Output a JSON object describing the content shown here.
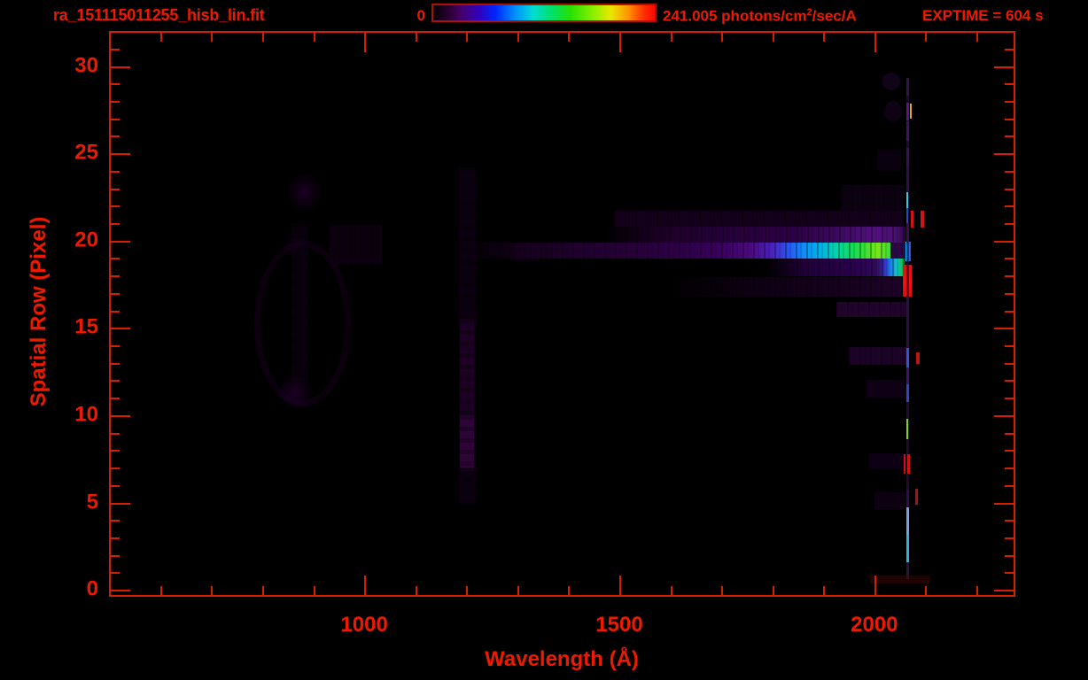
{
  "header": {
    "title": "ra_151115011255_hisb_lin.fit",
    "colorbar_min": "0",
    "colorbar_max_value": "241.005 photons/cm",
    "unit_sup": "2",
    "unit_suffix": "/sec/A",
    "exptime": "EXPTIME = 604 s",
    "colorbar_gradient": "linear-gradient(90deg,#050005 0%,#2a0030 7%,#46006e 13%,#3400b8 20%,#0024ff 28%,#0090ff 37%,#00dcd4 45%,#00e064 54%,#28e000 62%,#86f000 72%,#eae800 80%,#ff9400 88%,#ff3000 95%,#ff0600 100%)",
    "accent_color": "#ee1a00",
    "frame_color": "#d42000"
  },
  "chart_data": {
    "type": "heatmap",
    "title": "ra_151115011255_hisb_lin.fit",
    "xlabel": "Wavelength (Å)",
    "ylabel": "Spatial Row (Pixel)",
    "xlim": [
      503,
      2273
    ],
    "ylim": [
      -0.3,
      31.9
    ],
    "x_axis": {
      "major": [
        1000,
        1500,
        2000
      ],
      "minor_start": 600,
      "minor_end": 2200,
      "minor_step": 100
    },
    "y_axis": {
      "major": [
        0,
        5,
        10,
        15,
        20,
        25,
        30
      ],
      "minor_start": 0,
      "minor_end": 31,
      "minor_step": 1
    },
    "intensity_scale": {
      "min": 0,
      "max": 241.005,
      "units": "photons/cm2/sec/A",
      "stretch": "linear"
    },
    "exposure_time_s": 604,
    "legend_position": "top",
    "grid": false,
    "features": [
      {
        "name": "faint-ring-left",
        "x": [
          784,
          974
        ],
        "rows": [
          10.5,
          20.0
        ],
        "bg": "transparent",
        "border": "7px solid rgba(22,0,28,0.55)"
      },
      {
        "name": "faint-blob-left-upper",
        "x": [
          848,
          917
        ],
        "rows": [
          21.6,
          23.9
        ],
        "blob": true,
        "bg": "radial-gradient(ellipse, rgba(46,0,58,0.6), rgba(0,0,0,0) 72%)"
      },
      {
        "name": "faint-blob-left-lower",
        "x": [
          830,
          900
        ],
        "rows": [
          10.3,
          12.4
        ],
        "blob": true,
        "bg": "radial-gradient(ellipse, rgba(50,0,64,0.58), rgba(0,0,0,0) 72%)"
      },
      {
        "name": "faint-blob-left-mid",
        "x": [
          838,
          890
        ],
        "rows": [
          18.9,
          20.6
        ],
        "blob": true,
        "bg": "radial-gradient(ellipse, rgba(30,0,40,0.4), rgba(0,0,0,0) 72%)"
      },
      {
        "name": "faint-column-860",
        "x": [
          858,
          890
        ],
        "rows": [
          12.0,
          21.0
        ],
        "bg": "rgba(24,0,32,0.35)",
        "vstripes": true
      },
      {
        "name": "lyman-column-base",
        "x": [
          1186,
          1218
        ],
        "rows": [
          4.9,
          24.2
        ],
        "bg": "rgba(28,0,38,0.4)",
        "vstripes": true
      },
      {
        "name": "lyman-column-mid",
        "x": [
          1188,
          1216
        ],
        "rows": [
          6.8,
          15.5
        ],
        "bg": "rgba(46,2,56,0.55)",
        "vstripes": true
      },
      {
        "name": "lyman-column-bright",
        "x": [
          1188,
          1216
        ],
        "rows": [
          7.0,
          10.0
        ],
        "bg": "rgba(62,6,74,0.6)",
        "vstripes": true
      },
      {
        "name": "trace-smudge-950",
        "x": [
          931,
          1035
        ],
        "rows": [
          18.6,
          20.9
        ],
        "bg": "rgba(22,0,30,0.45)",
        "stripes": true
      },
      {
        "name": "trace-smudge-1300",
        "x": [
          1294,
          1346
        ],
        "rows": [
          18.8,
          19.9
        ],
        "bg": "rgba(26,0,34,0.5)",
        "stripes": true
      },
      {
        "name": "band-row21-faint",
        "x": [
          1490,
          2058
        ],
        "rows": [
          20.8,
          21.7
        ],
        "bg": "rgba(26,0,36,0.75)",
        "stripes": true
      },
      {
        "name": "band-row22-faint",
        "x": [
          1935,
          2058
        ],
        "rows": [
          21.7,
          23.2
        ],
        "bg": "rgba(24,2,34,0.5)",
        "stripes": true
      },
      {
        "name": "band-row24-faint",
        "x": [
          2005,
          2055
        ],
        "rows": [
          24.0,
          25.2
        ],
        "bg": "rgba(22,2,32,0.45)"
      },
      {
        "name": "band-row20",
        "x": [
          1472,
          2061
        ],
        "rows": [
          19.9,
          20.8
        ],
        "bg": "linear-gradient(90deg, rgba(30,0,40,0) 0%, rgba(34,0,46,0.8) 18%, #26003a 40%, #2c0044 62%, #3c0a5e 78%, #521080 90%, #48106e 97%, #2c0a46 100%)",
        "stripes": true
      },
      {
        "name": "main-trace",
        "x": [
          1178,
          2031
        ],
        "rows": [
          18.95,
          19.9
        ],
        "bg": "linear-gradient(90deg, rgba(20,0,26,0) 0%, rgba(26,0,34,0.55) 12%, #1e002c 26%, #260038 40%, #2e0048 52%, #3a005e 61%, #4c0a80 68%, #4a22c2 73%, #2a54f2 76.5%, #0e8cfa 80%, #00b4e8 84%, #00d8a0 88%, #10dc5c 91%, #34e034 94%, #7ae816 97%, #3cd83c 100%)",
        "stripes": true
      },
      {
        "name": "trace-end-purple-block",
        "x": [
          2031,
          2061
        ],
        "rows": [
          18.95,
          19.9
        ],
        "bg": "#2c0846",
        "stripes": true
      },
      {
        "name": "trace-end-blue-edge",
        "x": [
          2061,
          2071
        ],
        "rows": [
          18.8,
          19.95
        ],
        "bg": "linear-gradient(90deg,#00b6ff 0%,#1e9cf4 50%,#2440e0 100%)"
      },
      {
        "name": "band-row18",
        "x": [
          1784,
          2059
        ],
        "rows": [
          17.95,
          18.95
        ],
        "bg": "linear-gradient(90deg, rgba(26,0,36,0) 0%, #22003a 30%, #28004a 60%, #30085a 78%, #341468 82%, #3134cc 86%, #1a86e8 90.5%, #0cc4d4 94%, #16c464 97.5%, #0e9040 100%)",
        "stripes": true
      },
      {
        "name": "band-row17-faint",
        "x": [
          1595,
          2055
        ],
        "rows": [
          16.8,
          17.92
        ],
        "bg": "linear-gradient(90deg, rgba(18,0,24,0) 0%, rgba(22,0,30,0.6) 35%, rgba(28,2,38,0.8) 75%, rgba(34,4,46,0.85) 100%)",
        "stripes": true
      },
      {
        "name": "saturated-red-block",
        "x": [
          2056,
          2074
        ],
        "rows": [
          16.8,
          18.6
        ],
        "bg": "linear-gradient(180deg,#d81410 0%,#f41408 55%,#e00c06 100%)"
      },
      {
        "name": "band-row16-faint",
        "x": [
          1925,
          2062
        ],
        "rows": [
          15.6,
          16.5
        ],
        "bg": "rgba(42,4,58,0.8)",
        "stripes": true
      },
      {
        "name": "band-row13-faint",
        "x": [
          1950,
          2062
        ],
        "rows": [
          12.9,
          13.9
        ],
        "bg": "rgba(38,4,52,0.75)",
        "stripes": true
      },
      {
        "name": "band-row11-faint",
        "x": [
          1985,
          2062
        ],
        "rows": [
          11.0,
          12.0
        ],
        "bg": "rgba(26,0,36,0.6)"
      },
      {
        "name": "band-row7-faint",
        "x": [
          1990,
          2062
        ],
        "rows": [
          6.9,
          7.8
        ],
        "bg": "rgba(26,0,36,0.55)"
      },
      {
        "name": "band-row5-faint",
        "x": [
          2000,
          2062
        ],
        "rows": [
          4.6,
          5.6
        ],
        "bg": "rgba(24,0,34,0.5)"
      },
      {
        "name": "edge-top-blob-a",
        "x": [
          2015,
          2050
        ],
        "rows": [
          28.6,
          29.6
        ],
        "blob": true,
        "bg": "rgba(34,6,48,0.5)"
      },
      {
        "name": "edge-top-blob-b",
        "x": [
          2020,
          2055
        ],
        "rows": [
          26.8,
          28.0
        ],
        "blob": true,
        "bg": "rgba(30,4,44,0.45)"
      },
      {
        "name": "edge-line-stem",
        "x": [
          2063,
          2068
        ],
        "rows": [
          0.6,
          29.3
        ],
        "bg": "rgba(42,12,64,0.75)"
      },
      {
        "name": "edge-seg-row29",
        "x": [
          2063,
          2068
        ],
        "rows": [
          28.3,
          29.3
        ],
        "bg": "#381050"
      },
      {
        "name": "edge-seg-row27",
        "x": [
          2063,
          2068
        ],
        "rows": [
          26.9,
          27.9
        ],
        "bg": "#5c1488"
      },
      {
        "name": "edge-orange-dash-row27",
        "x": [
          2070,
          2074
        ],
        "rows": [
          27.0,
          27.85
        ],
        "bg": "#e8a81c"
      },
      {
        "name": "edge-seg-row26",
        "x": [
          2063,
          2068
        ],
        "rows": [
          25.7,
          26.85
        ],
        "bg": "#44106a"
      },
      {
        "name": "edge-seg-row25",
        "x": [
          2063,
          2068
        ],
        "rows": [
          24.3,
          25.3
        ],
        "bg": "#3c0c5e"
      },
      {
        "name": "edge-seg-row23",
        "x": [
          2063,
          2068
        ],
        "rows": [
          22.8,
          24.3
        ],
        "bg": "#340a50"
      },
      {
        "name": "edge-cyan-row22",
        "x": [
          2063,
          2067
        ],
        "rows": [
          21.85,
          22.75
        ],
        "bg": "#38c4e8"
      },
      {
        "name": "edge-blue-row21",
        "x": [
          2063,
          2067
        ],
        "rows": [
          21.0,
          21.85
        ],
        "bg": "#2646c8"
      },
      {
        "name": "red-dash-row21-a",
        "x": [
          2071,
          2077
        ],
        "rows": [
          20.75,
          21.7
        ],
        "bg": "#cc1616"
      },
      {
        "name": "red-dash-row21-b",
        "x": [
          2091,
          2098
        ],
        "rows": [
          20.75,
          21.7
        ],
        "bg": "#cc1616"
      },
      {
        "name": "edge-seg-row20",
        "x": [
          2063,
          2068
        ],
        "rows": [
          19.9,
          21.0
        ],
        "bg": "#3c0c5a"
      },
      {
        "name": "edge-seg-row15",
        "x": [
          2063,
          2068
        ],
        "rows": [
          13.9,
          16.8
        ],
        "bg": "rgba(58,14,90,0.55)"
      },
      {
        "name": "edge-blue-row13",
        "x": [
          2063,
          2068
        ],
        "rows": [
          12.75,
          13.85
        ],
        "bg": "#3156dc"
      },
      {
        "name": "red-dash-row13",
        "x": [
          2082,
          2088
        ],
        "rows": [
          12.95,
          13.6
        ],
        "bg": "#ba1414"
      },
      {
        "name": "edge-seg-row12",
        "x": [
          2063,
          2068
        ],
        "rows": [
          11.75,
          12.75
        ],
        "bg": "#44106e"
      },
      {
        "name": "edge-blue-row11",
        "x": [
          2063,
          2068
        ],
        "rows": [
          10.75,
          11.75
        ],
        "bg": "#2a48cc"
      },
      {
        "name": "edge-green-row9",
        "x": [
          2063,
          2067
        ],
        "rows": [
          8.6,
          9.8
        ],
        "bg": "#84d41e"
      },
      {
        "name": "edge-red-row7-a",
        "x": [
          2057,
          2061
        ],
        "rows": [
          6.65,
          7.75
        ],
        "bg": "#cc1212"
      },
      {
        "name": "edge-red-row7-b",
        "x": [
          2064,
          2070
        ],
        "rows": [
          6.65,
          7.75
        ],
        "bg": "#cc1212"
      },
      {
        "name": "red-dash-row5",
        "x": [
          2080,
          2086
        ],
        "rows": [
          4.85,
          5.8
        ],
        "bg": "#ae1010"
      },
      {
        "name": "edge-seg-row5",
        "x": [
          2063,
          2068
        ],
        "rows": [
          4.75,
          5.75
        ],
        "bg": "#340b50"
      },
      {
        "name": "edge-lightblue-row4",
        "x": [
          2063,
          2068
        ],
        "rows": [
          3.15,
          4.7
        ],
        "bg": "#68a4ea"
      },
      {
        "name": "edge-cyan-row2",
        "x": [
          2063,
          2068
        ],
        "rows": [
          1.6,
          3.15
        ],
        "bg": "#2cb2e2"
      },
      {
        "name": "edge-fade-row1",
        "x": [
          2063,
          2068
        ],
        "rows": [
          0.6,
          1.6
        ],
        "bg": "#2a1240"
      },
      {
        "name": "bottom-maroon-streak",
        "x": [
          1992,
          2108
        ],
        "rows": [
          0.35,
          0.8
        ],
        "bg": "rgba(60,10,8,0.5)"
      }
    ]
  }
}
